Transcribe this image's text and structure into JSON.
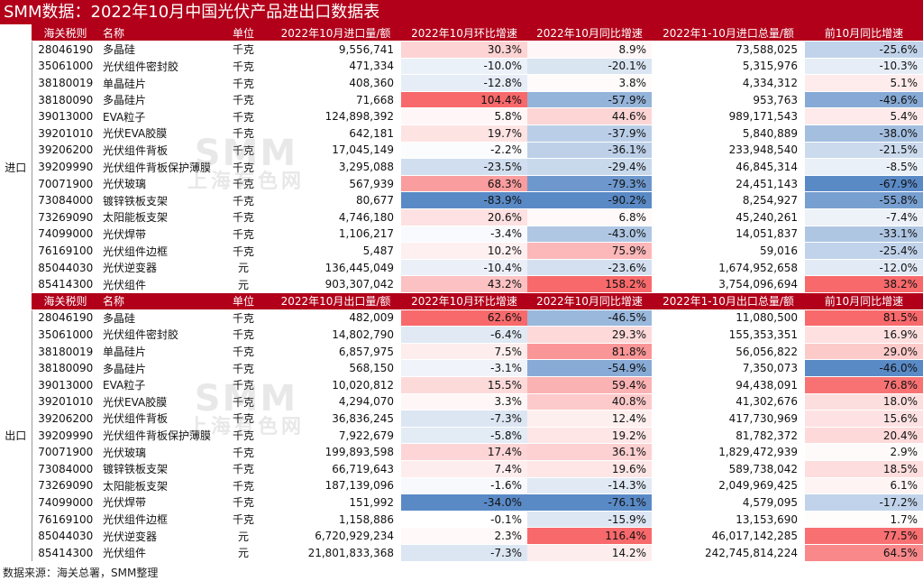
{
  "title": "SMM数据：2022年10月中国光伏产品进出口数据表",
  "import": {
    "group_label": "进口",
    "headers": [
      "海关税则",
      "名称",
      "单位",
      "2022年10月进口量/额",
      "2022年10月环比增速",
      "2022年10月同比增速",
      "2022年1-10月进口总量/额",
      "前10月同比增速"
    ],
    "rows": [
      [
        "28046190",
        "多晶硅",
        "千克",
        "9,556,741",
        "30.3%",
        "8.9%",
        "73,588,025",
        "-25.6%"
      ],
      [
        "35061000",
        "光伏组件密封胶",
        "千克",
        "471,334",
        "-10.0%",
        "-20.1%",
        "5,315,976",
        "-10.3%"
      ],
      [
        "38180019",
        "单晶硅片",
        "千克",
        "408,360",
        "-12.8%",
        "3.8%",
        "4,334,312",
        "5.1%"
      ],
      [
        "38180090",
        "多晶硅片",
        "千克",
        "71,668",
        "104.4%",
        "-57.9%",
        "953,763",
        "-49.6%"
      ],
      [
        "39013000",
        "EVA粒子",
        "千克",
        "124,898,392",
        "5.8%",
        "44.6%",
        "989,171,543",
        "5.4%"
      ],
      [
        "39201010",
        "光伏EVA胶膜",
        "千克",
        "642,181",
        "19.7%",
        "-37.9%",
        "5,840,889",
        "-38.0%"
      ],
      [
        "39206200",
        "光伏组件背板",
        "千克",
        "17,045,149",
        "-2.2%",
        "-36.1%",
        "233,948,540",
        "-21.5%"
      ],
      [
        "39209990",
        "光伏组件背板保护薄膜",
        "千克",
        "3,295,088",
        "-23.5%",
        "-29.4%",
        "46,845,314",
        "-8.5%"
      ],
      [
        "70071900",
        "光伏玻璃",
        "千克",
        "567,939",
        "68.3%",
        "-79.3%",
        "24,451,143",
        "-67.9%"
      ],
      [
        "73084000",
        "镀锌铁板支架",
        "千克",
        "80,677",
        "-83.9%",
        "-90.2%",
        "8,254,927",
        "-55.8%"
      ],
      [
        "73269090",
        "太阳能板支架",
        "千克",
        "4,746,180",
        "20.6%",
        "6.8%",
        "45,240,261",
        "-7.4%"
      ],
      [
        "74099000",
        "光伏焊带",
        "千克",
        "1,106,217",
        "-3.4%",
        "-43.0%",
        "14,051,837",
        "-33.1%"
      ],
      [
        "76169100",
        "光伏组件边框",
        "千克",
        "5,487",
        "10.2%",
        "75.9%",
        "59,016",
        "-25.4%"
      ],
      [
        "85044030",
        "光伏逆变器",
        "元",
        "136,445,049",
        "-10.4%",
        "-23.6%",
        "1,674,952,658",
        "-12.0%"
      ],
      [
        "85414300",
        "光伏组件",
        "元",
        "903,307,042",
        "43.2%",
        "158.2%",
        "3,754,096,694",
        "38.2%"
      ]
    ]
  },
  "export": {
    "group_label": "出口",
    "headers": [
      "海关税则",
      "名称",
      "单位",
      "2022年10月出口量/额",
      "2022年10月环比增速",
      "2022年10月同比增速",
      "2022年1-10月出口总量/额",
      "前10月同比增速"
    ],
    "rows": [
      [
        "28046190",
        "多晶硅",
        "千克",
        "482,009",
        "62.6%",
        "-46.5%",
        "11,080,500",
        "81.5%"
      ],
      [
        "35061000",
        "光伏组件密封胶",
        "千克",
        "14,802,790",
        "-6.4%",
        "29.3%",
        "155,353,351",
        "16.9%"
      ],
      [
        "38180019",
        "单晶硅片",
        "千克",
        "6,857,975",
        "7.5%",
        "81.8%",
        "56,056,822",
        "29.0%"
      ],
      [
        "38180090",
        "多晶硅片",
        "千克",
        "568,150",
        "-3.1%",
        "-54.9%",
        "7,350,073",
        "-46.0%"
      ],
      [
        "39013000",
        "EVA粒子",
        "千克",
        "10,020,812",
        "15.5%",
        "59.4%",
        "94,438,091",
        "76.8%"
      ],
      [
        "39201010",
        "光伏EVA胶膜",
        "千克",
        "4,294,070",
        "3.3%",
        "40.8%",
        "41,302,676",
        "18.0%"
      ],
      [
        "39206200",
        "光伏组件背板",
        "千克",
        "36,836,245",
        "-7.3%",
        "12.4%",
        "417,730,969",
        "15.6%"
      ],
      [
        "39209990",
        "光伏组件背板保护薄膜",
        "千克",
        "7,922,679",
        "-5.8%",
        "19.2%",
        "81,782,372",
        "20.4%"
      ],
      [
        "70071900",
        "光伏玻璃",
        "千克",
        "199,893,598",
        "17.4%",
        "36.1%",
        "1,829,472,939",
        "2.9%"
      ],
      [
        "73084000",
        "镀锌铁板支架",
        "千克",
        "66,719,643",
        "7.4%",
        "19.6%",
        "589,738,042",
        "18.5%"
      ],
      [
        "73269090",
        "太阳能板支架",
        "千克",
        "187,139,096",
        "-1.6%",
        "-14.3%",
        "2,049,969,425",
        "6.1%"
      ],
      [
        "74099000",
        "光伏焊带",
        "千克",
        "151,992",
        "-34.0%",
        "-76.1%",
        "4,579,095",
        "-17.2%"
      ],
      [
        "76169100",
        "光伏组件边框",
        "千克",
        "1,158,886",
        "-0.1%",
        "-15.9%",
        "13,153,690",
        "1.7%"
      ],
      [
        "85044030",
        "光伏逆变器",
        "元",
        "6,720,929,234",
        "2.3%",
        "116.4%",
        "46,017,142,285",
        "77.5%"
      ],
      [
        "85414300",
        "光伏组件",
        "元",
        "21,801,833,368",
        "-7.3%",
        "14.2%",
        "242,745,814,224",
        "64.5%"
      ]
    ]
  },
  "watermark": {
    "logo": "SMM",
    "text": "上海有色网"
  },
  "footer": "数据来源：海关总署，SMM整理",
  "colors": {
    "header_bg": "#b2001a",
    "positive": "#f8696b",
    "negative": "#5a8ac6",
    "stripe": "#e4e4e4"
  }
}
